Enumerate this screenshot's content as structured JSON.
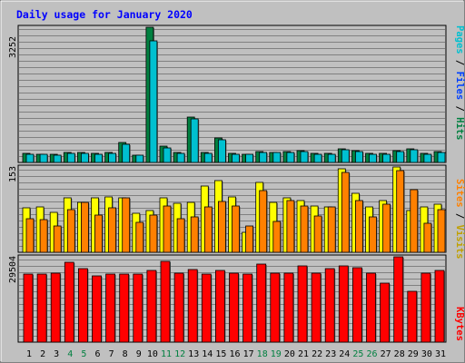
{
  "chart_data": [
    {
      "type": "bar",
      "title": "Daily usage for January 2020",
      "categories": [
        "1",
        "2",
        "3",
        "4",
        "5",
        "6",
        "7",
        "8",
        "9",
        "10",
        "11",
        "12",
        "13",
        "14",
        "15",
        "16",
        "17",
        "18",
        "19",
        "20",
        "21",
        "22",
        "23",
        "24",
        "25",
        "26",
        "27",
        "28",
        "29",
        "30",
        "31"
      ],
      "weekend_days": [
        "4",
        "5",
        "11",
        "12",
        "18",
        "19",
        "25",
        "26"
      ],
      "y_max_label": "3252",
      "ylim": [
        0,
        3252
      ],
      "legend": [
        "Pages",
        "Files",
        "Hits"
      ],
      "legend_colors": {
        "Pages": "#00c0d0",
        "Files": "#0040ff",
        "Hits": "#008040"
      },
      "series": [
        {
          "name": "Hits",
          "color": "#008040",
          "values": [
            220,
            205,
            200,
            235,
            230,
            225,
            235,
            490,
            180,
            3252,
            390,
            245,
            1100,
            245,
            590,
            220,
            205,
            260,
            250,
            265,
            275,
            225,
            215,
            330,
            280,
            215,
            220,
            290,
            330,
            220,
            270
          ]
        },
        {
          "name": "Files",
          "color": "#00c0d0",
          "values": [
            200,
            190,
            185,
            215,
            210,
            205,
            215,
            440,
            165,
            2930,
            360,
            225,
            1050,
            225,
            540,
            205,
            190,
            240,
            235,
            245,
            255,
            205,
            200,
            300,
            260,
            200,
            205,
            265,
            300,
            200,
            245
          ]
        },
        {
          "name": "Pages",
          "color": "#00c0d0",
          "values": [
            140,
            130,
            125,
            150,
            145,
            140,
            150,
            310,
            115,
            2000,
            250,
            155,
            720,
            155,
            370,
            140,
            130,
            165,
            160,
            170,
            175,
            140,
            135,
            210,
            180,
            135,
            140,
            185,
            210,
            140,
            170
          ]
        }
      ]
    },
    {
      "type": "bar",
      "y_max_label": "153",
      "ylim": [
        0,
        153
      ],
      "legend": [
        "Sites",
        "Visits"
      ],
      "legend_colors": {
        "Sites": "#ff8000",
        "Visits": "#c0a000"
      },
      "series": [
        {
          "name": "Visits",
          "color": "#ffff00",
          "values": [
            80,
            82,
            72,
            98,
            90,
            98,
            100,
            98,
            70,
            75,
            98,
            88,
            90,
            119,
            129,
            100,
            36,
            125,
            90,
            98,
            92,
            83,
            82,
            150,
            105,
            81,
            92,
            153,
            75,
            81,
            87
          ]
        },
        {
          "name": "Sites",
          "color": "#ff8000",
          "values": [
            60,
            59,
            48,
            77,
            90,
            67,
            79,
            98,
            53,
            67,
            83,
            61,
            63,
            81,
            91,
            83,
            48,
            111,
            55,
            93,
            83,
            65,
            81,
            143,
            92,
            63,
            86,
            146,
            113,
            52,
            76
          ]
        }
      ]
    },
    {
      "type": "bar",
      "y_max_label": "29504",
      "ylim": [
        0,
        29504
      ],
      "legend": [
        "KBytes"
      ],
      "legend_colors": {
        "KBytes": "#ff0000"
      },
      "series": [
        {
          "name": "KBytes",
          "color": "#ff0000",
          "values": [
            23500,
            23400,
            24000,
            27500,
            25300,
            23000,
            23500,
            23500,
            23500,
            24700,
            28000,
            24000,
            25000,
            23500,
            24700,
            24000,
            23500,
            27000,
            24000,
            24000,
            26300,
            24000,
            25300,
            26300,
            25700,
            24000,
            20500,
            29504,
            17500,
            24000,
            24700
          ]
        }
      ]
    }
  ]
}
